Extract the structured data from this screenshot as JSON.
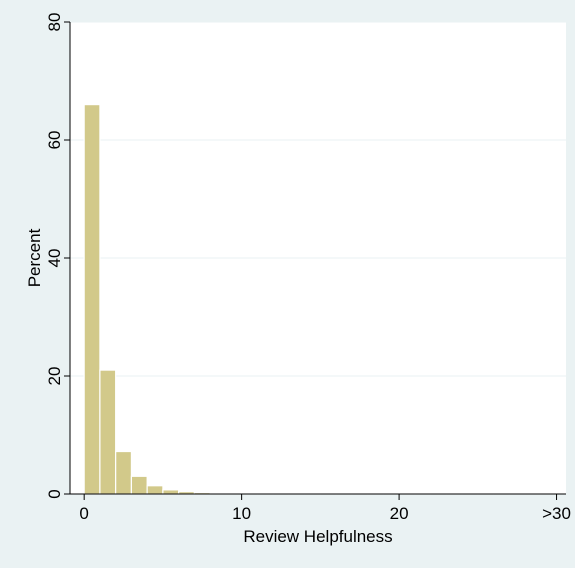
{
  "chart_data": {
    "type": "bar",
    "xlabel": "Review Helpfulness",
    "ylabel": "Percent",
    "x_tick_labels": [
      "0",
      "10",
      "20",
      ">30"
    ],
    "y_tick_labels": [
      "0",
      "20",
      "40",
      "60",
      "80"
    ],
    "x_ticks": [
      0,
      10,
      20,
      30
    ],
    "y_ticks": [
      0,
      20,
      40,
      60,
      80
    ],
    "xlim": [
      -0.9,
      30.6
    ],
    "ylim": [
      0,
      80
    ],
    "grid": true,
    "bin_width": 1,
    "bins_x_start": [
      0,
      1,
      2,
      3,
      4,
      5,
      6,
      7,
      8,
      9,
      10,
      11,
      12,
      13,
      14,
      15,
      16,
      17,
      18,
      19,
      20,
      21,
      22,
      23,
      24,
      25,
      26,
      27,
      28,
      29
    ],
    "values": [
      66,
      21,
      7.2,
      3,
      1.4,
      0.7,
      0.4,
      0.25,
      0.15,
      0.12,
      0.1,
      0.08,
      0.07,
      0.06,
      0.05,
      0.05,
      0.04,
      0.04,
      0.03,
      0.03,
      0.03,
      0.03,
      0.03,
      0.02,
      0.02,
      0.02,
      0.02,
      0.02,
      0.02,
      0.02
    ],
    "bar_color": "#d2c98a"
  },
  "colors": {
    "frame": "#eaf2f3",
    "plot_background": "#ffffff",
    "bar": "#d2c98a"
  }
}
